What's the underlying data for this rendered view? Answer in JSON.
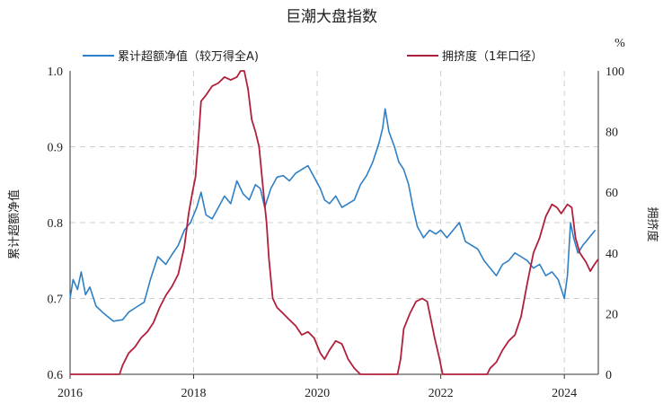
{
  "chart_data": {
    "type": "line",
    "title": "巨潮大盘指数",
    "ylabel_left": "累计超额净值",
    "ylabel_right": "拥挤度",
    "right_unit": "%",
    "legend_position": "top",
    "grid": true,
    "x_ticks": [
      "2016",
      "2018",
      "2020",
      "2022",
      "2024"
    ],
    "xlim": [
      2016.0,
      2024.55
    ],
    "ylim_left": [
      0.6,
      1.0
    ],
    "y_ticks_left": [
      "0.6",
      "0.7",
      "0.8",
      "0.9",
      "1.0"
    ],
    "ylim_right": [
      0,
      100
    ],
    "y_ticks_right": [
      "0",
      "20",
      "40",
      "60",
      "80",
      "100"
    ],
    "series": [
      {
        "name": "累计超额净值（较万得全A)",
        "axis": "left",
        "color": "#2f7fc5",
        "points": [
          [
            2016.0,
            0.7
          ],
          [
            2016.05,
            0.725
          ],
          [
            2016.12,
            0.712
          ],
          [
            2016.18,
            0.735
          ],
          [
            2016.25,
            0.705
          ],
          [
            2016.32,
            0.715
          ],
          [
            2016.42,
            0.69
          ],
          [
            2016.55,
            0.68
          ],
          [
            2016.7,
            0.67
          ],
          [
            2016.85,
            0.672
          ],
          [
            2016.95,
            0.682
          ],
          [
            2017.1,
            0.69
          ],
          [
            2017.2,
            0.695
          ],
          [
            2017.3,
            0.725
          ],
          [
            2017.42,
            0.755
          ],
          [
            2017.55,
            0.745
          ],
          [
            2017.65,
            0.758
          ],
          [
            2017.75,
            0.77
          ],
          [
            2017.85,
            0.79
          ],
          [
            2017.95,
            0.8
          ],
          [
            2018.05,
            0.82
          ],
          [
            2018.12,
            0.84
          ],
          [
            2018.2,
            0.81
          ],
          [
            2018.3,
            0.805
          ],
          [
            2018.4,
            0.82
          ],
          [
            2018.5,
            0.835
          ],
          [
            2018.6,
            0.825
          ],
          [
            2018.7,
            0.855
          ],
          [
            2018.8,
            0.838
          ],
          [
            2018.9,
            0.83
          ],
          [
            2019.0,
            0.85
          ],
          [
            2019.08,
            0.845
          ],
          [
            2019.15,
            0.82
          ],
          [
            2019.25,
            0.845
          ],
          [
            2019.35,
            0.86
          ],
          [
            2019.45,
            0.862
          ],
          [
            2019.55,
            0.855
          ],
          [
            2019.65,
            0.865
          ],
          [
            2019.75,
            0.87
          ],
          [
            2019.85,
            0.875
          ],
          [
            2019.95,
            0.86
          ],
          [
            2020.05,
            0.845
          ],
          [
            2020.12,
            0.83
          ],
          [
            2020.2,
            0.825
          ],
          [
            2020.3,
            0.835
          ],
          [
            2020.4,
            0.82
          ],
          [
            2020.5,
            0.825
          ],
          [
            2020.6,
            0.83
          ],
          [
            2020.7,
            0.85
          ],
          [
            2020.8,
            0.862
          ],
          [
            2020.9,
            0.88
          ],
          [
            2021.0,
            0.905
          ],
          [
            2021.06,
            0.925
          ],
          [
            2021.1,
            0.95
          ],
          [
            2021.16,
            0.92
          ],
          [
            2021.25,
            0.9
          ],
          [
            2021.32,
            0.88
          ],
          [
            2021.4,
            0.87
          ],
          [
            2021.48,
            0.85
          ],
          [
            2021.55,
            0.82
          ],
          [
            2021.62,
            0.795
          ],
          [
            2021.72,
            0.78
          ],
          [
            2021.82,
            0.79
          ],
          [
            2021.92,
            0.785
          ],
          [
            2022.0,
            0.79
          ],
          [
            2022.1,
            0.78
          ],
          [
            2022.2,
            0.79
          ],
          [
            2022.3,
            0.8
          ],
          [
            2022.4,
            0.775
          ],
          [
            2022.5,
            0.77
          ],
          [
            2022.6,
            0.765
          ],
          [
            2022.7,
            0.75
          ],
          [
            2022.8,
            0.74
          ],
          [
            2022.9,
            0.73
          ],
          [
            2023.0,
            0.745
          ],
          [
            2023.1,
            0.75
          ],
          [
            2023.2,
            0.76
          ],
          [
            2023.3,
            0.755
          ],
          [
            2023.4,
            0.75
          ],
          [
            2023.5,
            0.74
          ],
          [
            2023.6,
            0.745
          ],
          [
            2023.7,
            0.73
          ],
          [
            2023.8,
            0.735
          ],
          [
            2023.9,
            0.725
          ],
          [
            2024.0,
            0.7
          ],
          [
            2024.05,
            0.73
          ],
          [
            2024.1,
            0.8
          ],
          [
            2024.15,
            0.78
          ],
          [
            2024.22,
            0.76
          ],
          [
            2024.3,
            0.77
          ],
          [
            2024.4,
            0.78
          ],
          [
            2024.5,
            0.79
          ]
        ]
      },
      {
        "name": "拥挤度（1年口径）",
        "axis": "right",
        "color": "#b0203a",
        "points": [
          [
            2016.0,
            0
          ],
          [
            2016.8,
            0
          ],
          [
            2016.85,
            3
          ],
          [
            2016.95,
            7
          ],
          [
            2017.05,
            9
          ],
          [
            2017.15,
            12
          ],
          [
            2017.25,
            14
          ],
          [
            2017.35,
            17
          ],
          [
            2017.45,
            22
          ],
          [
            2017.55,
            26
          ],
          [
            2017.65,
            29
          ],
          [
            2017.75,
            33
          ],
          [
            2017.85,
            42
          ],
          [
            2017.92,
            53
          ],
          [
            2017.98,
            60
          ],
          [
            2018.03,
            65
          ],
          [
            2018.08,
            78
          ],
          [
            2018.12,
            90
          ],
          [
            2018.2,
            92
          ],
          [
            2018.3,
            95
          ],
          [
            2018.4,
            96
          ],
          [
            2018.5,
            98
          ],
          [
            2018.6,
            97
          ],
          [
            2018.7,
            98
          ],
          [
            2018.76,
            100
          ],
          [
            2018.82,
            100
          ],
          [
            2018.88,
            94
          ],
          [
            2018.94,
            84
          ],
          [
            2019.0,
            80
          ],
          [
            2019.06,
            75
          ],
          [
            2019.12,
            62
          ],
          [
            2019.18,
            50
          ],
          [
            2019.22,
            38
          ],
          [
            2019.28,
            25
          ],
          [
            2019.35,
            22
          ],
          [
            2019.45,
            20
          ],
          [
            2019.55,
            18
          ],
          [
            2019.65,
            16
          ],
          [
            2019.75,
            13
          ],
          [
            2019.85,
            14
          ],
          [
            2019.95,
            12
          ],
          [
            2020.05,
            7
          ],
          [
            2020.12,
            5
          ],
          [
            2020.2,
            8
          ],
          [
            2020.3,
            11
          ],
          [
            2020.4,
            10
          ],
          [
            2020.5,
            5
          ],
          [
            2020.6,
            2
          ],
          [
            2020.7,
            0
          ],
          [
            2021.3,
            0
          ],
          [
            2021.35,
            5
          ],
          [
            2021.4,
            15
          ],
          [
            2021.5,
            20
          ],
          [
            2021.6,
            24
          ],
          [
            2021.7,
            25
          ],
          [
            2021.78,
            24
          ],
          [
            2021.82,
            20
          ],
          [
            2021.9,
            12
          ],
          [
            2021.98,
            5
          ],
          [
            2022.03,
            0
          ],
          [
            2022.75,
            0
          ],
          [
            2022.8,
            2
          ],
          [
            2022.9,
            4
          ],
          [
            2023.0,
            8
          ],
          [
            2023.1,
            11
          ],
          [
            2023.2,
            13
          ],
          [
            2023.3,
            19
          ],
          [
            2023.4,
            30
          ],
          [
            2023.5,
            40
          ],
          [
            2023.6,
            45
          ],
          [
            2023.7,
            52
          ],
          [
            2023.8,
            56
          ],
          [
            2023.88,
            55
          ],
          [
            2023.95,
            53
          ],
          [
            2024.05,
            56
          ],
          [
            2024.12,
            55
          ],
          [
            2024.18,
            45
          ],
          [
            2024.25,
            40
          ],
          [
            2024.35,
            37
          ],
          [
            2024.42,
            34
          ],
          [
            2024.48,
            36
          ],
          [
            2024.55,
            38
          ]
        ]
      }
    ]
  }
}
